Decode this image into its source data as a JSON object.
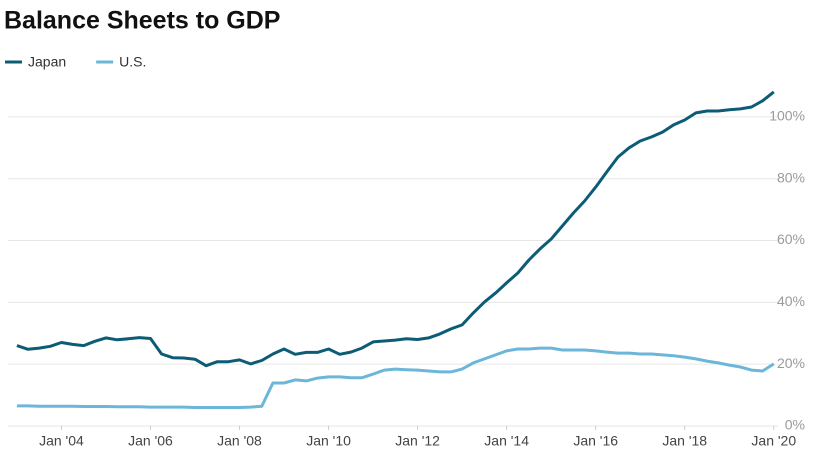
{
  "chart_data": {
    "type": "line",
    "title": "Balance Sheets to GDP",
    "x": [
      2003,
      2003.25,
      2003.5,
      2003.75,
      2004,
      2004.25,
      2004.5,
      2004.75,
      2005,
      2005.25,
      2005.5,
      2005.75,
      2006,
      2006.25,
      2006.5,
      2006.75,
      2007,
      2007.25,
      2007.5,
      2007.75,
      2008,
      2008.25,
      2008.5,
      2008.75,
      2009,
      2009.25,
      2009.5,
      2009.75,
      2010,
      2010.25,
      2010.5,
      2010.75,
      2011,
      2011.25,
      2011.5,
      2011.75,
      2012,
      2012.25,
      2012.5,
      2012.75,
      2013,
      2013.25,
      2013.5,
      2013.75,
      2014,
      2014.25,
      2014.5,
      2014.75,
      2015,
      2015.25,
      2015.5,
      2015.75,
      2016,
      2016.25,
      2016.5,
      2016.75,
      2017,
      2017.25,
      2017.5,
      2017.75,
      2018,
      2018.25,
      2018.5,
      2018.75,
      2019,
      2019.25,
      2019.5,
      2019.75,
      2020
    ],
    "series": [
      {
        "name": "Japan",
        "color": "#0d5c75",
        "values": [
          26.0,
          24.8,
          25.2,
          25.8,
          27.0,
          26.4,
          26.0,
          27.4,
          28.5,
          27.9,
          28.2,
          28.6,
          28.3,
          23.3,
          22.1,
          22.0,
          21.6,
          19.5,
          20.8,
          20.8,
          21.4,
          20.1,
          21.2,
          23.3,
          24.9,
          23.2,
          23.8,
          23.8,
          24.9,
          23.2,
          23.9,
          25.2,
          27.2,
          27.5,
          27.8,
          28.2,
          28.0,
          28.5,
          29.8,
          31.4,
          32.7,
          36.6,
          40.1,
          43.0,
          46.3,
          49.5,
          53.7,
          57.3,
          60.5,
          64.7,
          68.9,
          72.8,
          77.3,
          82.2,
          87.0,
          90.0,
          92.2,
          93.5,
          95.1,
          97.4,
          99.0,
          101.3,
          101.9,
          101.9,
          102.3,
          102.6,
          103.2,
          105.2,
          108.1
        ]
      },
      {
        "name": "U.S.",
        "color": "#6cb6d9",
        "values": [
          6.5,
          6.5,
          6.4,
          6.4,
          6.4,
          6.4,
          6.3,
          6.3,
          6.3,
          6.2,
          6.2,
          6.2,
          6.1,
          6.1,
          6.1,
          6.1,
          6.0,
          6.0,
          6.0,
          6.0,
          6.0,
          6.1,
          6.4,
          13.9,
          13.9,
          14.9,
          14.6,
          15.5,
          15.9,
          15.9,
          15.6,
          15.6,
          16.8,
          18.1,
          18.4,
          18.2,
          18.1,
          17.8,
          17.5,
          17.5,
          18.4,
          20.4,
          21.7,
          23.0,
          24.3,
          24.9,
          24.9,
          25.2,
          25.2,
          24.6,
          24.6,
          24.6,
          24.3,
          23.9,
          23.6,
          23.6,
          23.3,
          23.3,
          23.0,
          22.7,
          22.3,
          21.7,
          21.0,
          20.4,
          19.7,
          19.1,
          18.1,
          17.8,
          20.1
        ]
      }
    ],
    "xlim": [
      2002.8,
      2020.05
    ],
    "xticks": [
      {
        "value": 2004,
        "label": "Jan '04"
      },
      {
        "value": 2006,
        "label": "Jan '06"
      },
      {
        "value": 2008,
        "label": "Jan '08"
      },
      {
        "value": 2010,
        "label": "Jan '10"
      },
      {
        "value": 2012,
        "label": "Jan '12"
      },
      {
        "value": 2014,
        "label": "Jan '14"
      },
      {
        "value": 2016,
        "label": "Jan '16"
      },
      {
        "value": 2018,
        "label": "Jan '18"
      },
      {
        "value": 2020,
        "label": "Jan '20"
      }
    ],
    "ylim": [
      0,
      110
    ],
    "yticks": [
      {
        "value": 0,
        "label": "0%"
      },
      {
        "value": 20,
        "label": "20%"
      },
      {
        "value": 40,
        "label": "40%"
      },
      {
        "value": 60,
        "label": "60%"
      },
      {
        "value": 80,
        "label": "80%"
      },
      {
        "value": 100,
        "label": "100%"
      }
    ],
    "grid": true,
    "legend": "top-left"
  }
}
